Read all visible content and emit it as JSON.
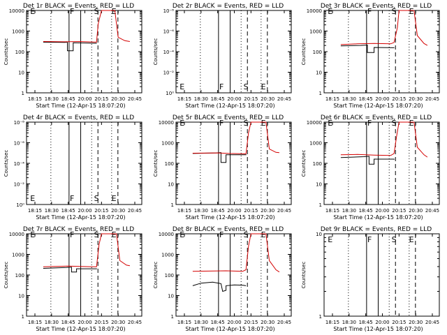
{
  "chart_data": [
    {
      "type": "line",
      "title": "Det 1r BLACK = Events, RED = LLD",
      "xlabel": "Start Time (12-Apr-15 18:07:20)",
      "ylabel": "Counts/sec",
      "x_ticks": [
        "18:15",
        "18:30",
        "18:45",
        "20:00",
        "20:15",
        "20:30",
        "20:45"
      ],
      "y_scale": "log",
      "y_ticks": [
        "1",
        "10",
        "100",
        "1000",
        "10000"
      ],
      "markers": [
        "E",
        "F",
        "S",
        "E"
      ],
      "series": [
        {
          "name": "BLACK",
          "color": "#000000",
          "points": [
            [
              0,
              290
            ],
            [
              1.3,
              280
            ],
            [
              1.45,
              290
            ],
            [
              1.45,
              110
            ],
            [
              1.8,
              110
            ],
            [
              1.8,
              270
            ],
            [
              3.2,
              255
            ],
            [
              3.2,
              250
            ]
          ]
        },
        {
          "name": "RED",
          "color": "#d40000",
          "points": [
            [
              0,
              310
            ],
            [
              1.3,
              300
            ],
            [
              2.2,
              310
            ],
            [
              3.2,
              290
            ],
            [
              3.3,
              2200
            ],
            [
              3.5,
              11000
            ],
            [
              4.3,
              11000
            ],
            [
              4.5,
              500
            ],
            [
              4.9,
              340
            ],
            [
              5.2,
              310
            ]
          ]
        }
      ]
    },
    {
      "type": "line",
      "title": "Det 2r BLACK = Events, RED = LLD",
      "xlabel": "Start Time (12-Apr-15 18:07:20)",
      "ylabel": "Counts/sec",
      "x_ticks": [
        "18:15",
        "18:30",
        "18:45",
        "20:00",
        "20:15",
        "20:30",
        "20:45"
      ],
      "y_scale": "log",
      "y_ticks": [
        "10⁰",
        "10⁻²",
        "10⁻⁴",
        "10⁻⁶",
        "10⁻⁸"
      ],
      "markers": [
        "E",
        "F",
        "S",
        "E"
      ],
      "series": []
    },
    {
      "type": "line",
      "title": "Det 3r BLACK = Events, RED = LLD",
      "xlabel": "Start Time (12-Apr-15 18:07:20)",
      "ylabel": "Counts/sec",
      "x_ticks": [
        "18:15",
        "18:30",
        "18:45",
        "20:00",
        "20:15",
        "20:30",
        "20:45"
      ],
      "y_scale": "log",
      "y_ticks": [
        "1",
        "10",
        "100",
        "1000",
        "10000"
      ],
      "markers": [
        "E",
        "F",
        "S",
        "E"
      ],
      "series": [
        {
          "name": "BLACK",
          "color": "#000000",
          "points": [
            [
              0,
              190
            ],
            [
              1.2,
              200
            ],
            [
              1.6,
              210
            ],
            [
              1.6,
              90
            ],
            [
              2.0,
              90
            ],
            [
              2.0,
              160
            ],
            [
              3.2,
              155
            ],
            [
              3.2,
              150
            ]
          ]
        },
        {
          "name": "RED",
          "color": "#d40000",
          "points": [
            [
              0,
              220
            ],
            [
              1.0,
              240
            ],
            [
              2.0,
              250
            ],
            [
              3.0,
              240
            ],
            [
              3.2,
              280
            ],
            [
              3.4,
              1500
            ],
            [
              3.5,
              11000
            ],
            [
              4.4,
              11000
            ],
            [
              4.6,
              600
            ],
            [
              5.0,
              250
            ],
            [
              5.2,
              200
            ]
          ]
        }
      ]
    },
    {
      "type": "line",
      "title": "Det 4r BLACK = Events, RED = LLD",
      "xlabel": "Start Time (12-Apr-15 18:07:20)",
      "ylabel": "Counts/sec",
      "x_ticks": [
        "18:15",
        "18:30",
        "18:45",
        "20:00",
        "20:15",
        "20:30",
        "20:45"
      ],
      "y_scale": "log",
      "y_ticks": [
        "10⁰",
        "10⁻²",
        "10⁻⁴",
        "10⁻⁶",
        "10⁻⁸"
      ],
      "markers": [
        "E",
        "F",
        "S",
        "E"
      ],
      "series": []
    },
    {
      "type": "line",
      "title": "Det 5r BLACK = Events, RED = LLD",
      "xlabel": "Start Time (12-Apr-15 18:07:20)",
      "ylabel": "Counts/sec",
      "x_ticks": [
        "18:15",
        "18:30",
        "18:45",
        "20:00",
        "20:15",
        "20:30",
        "20:45"
      ],
      "y_scale": "log",
      "y_ticks": [
        "1",
        "10",
        "100",
        "1000",
        "10000"
      ],
      "markers": [
        "E",
        "F",
        "S",
        "E"
      ],
      "series": [
        {
          "name": "BLACK",
          "color": "#000000",
          "points": [
            [
              0,
              300
            ],
            [
              1.4,
              320
            ],
            [
              1.7,
              330
            ],
            [
              1.7,
              110
            ],
            [
              2.0,
              110
            ],
            [
              2.0,
              260
            ],
            [
              3.2,
              260
            ],
            [
              3.2,
              250
            ]
          ]
        },
        {
          "name": "RED",
          "color": "#d40000",
          "points": [
            [
              0,
              310
            ],
            [
              1.5,
              320
            ],
            [
              2.2,
              300
            ],
            [
              3.2,
              290
            ],
            [
              3.35,
              3000
            ],
            [
              3.5,
              11000
            ],
            [
              4.4,
              11000
            ],
            [
              4.6,
              500
            ],
            [
              5.0,
              340
            ],
            [
              5.2,
              330
            ]
          ]
        }
      ]
    },
    {
      "type": "line",
      "title": "Det 6r BLACK = Events, RED = LLD",
      "xlabel": "Start Time (12-Apr-15 18:07:20)",
      "ylabel": "Counts/sec",
      "x_ticks": [
        "18:15",
        "18:30",
        "18:45",
        "20:00",
        "20:15",
        "20:30",
        "20:45"
      ],
      "y_scale": "log",
      "y_ticks": [
        "1",
        "10",
        "100",
        "1000",
        "10000"
      ],
      "markers": [
        "E",
        "F",
        "S",
        "E"
      ],
      "series": [
        {
          "name": "BLACK",
          "color": "#000000",
          "points": [
            [
              0,
              190
            ],
            [
              1.4,
              210
            ],
            [
              1.7,
              220
            ],
            [
              1.7,
              90
            ],
            [
              2.0,
              90
            ],
            [
              2.0,
              160
            ],
            [
              3.2,
              160
            ],
            [
              3.2,
              150
            ]
          ]
        },
        {
          "name": "RED",
          "color": "#d40000",
          "points": [
            [
              0,
              260
            ],
            [
              1.0,
              270
            ],
            [
              2.0,
              250
            ],
            [
              3.0,
              240
            ],
            [
              3.2,
              300
            ],
            [
              3.35,
              2000
            ],
            [
              3.5,
              11000
            ],
            [
              4.4,
              11000
            ],
            [
              4.6,
              600
            ],
            [
              5.0,
              260
            ],
            [
              5.2,
              200
            ]
          ]
        }
      ]
    },
    {
      "type": "line",
      "title": "Det 7r BLACK = Events, RED = LLD",
      "xlabel": "Start Time (12-Apr-15 18:07:20)",
      "ylabel": "Counts/sec",
      "x_ticks": [
        "18:15",
        "18:30",
        "18:45",
        "20:00",
        "20:15",
        "20:30",
        "20:45"
      ],
      "y_scale": "log",
      "y_ticks": [
        "1",
        "10",
        "100",
        "1000",
        "10000"
      ],
      "markers": [
        "E",
        "F",
        "S",
        "E"
      ],
      "series": [
        {
          "name": "BLACK",
          "color": "#000000",
          "points": [
            [
              0,
              210
            ],
            [
              1.4,
              230
            ],
            [
              1.7,
              240
            ],
            [
              1.7,
              140
            ],
            [
              2.0,
              140
            ],
            [
              2.0,
              200
            ],
            [
              3.2,
              200
            ],
            [
              3.2,
              190
            ]
          ]
        },
        {
          "name": "RED",
          "color": "#d40000",
          "points": [
            [
              0,
              250
            ],
            [
              1.5,
              270
            ],
            [
              2.2,
              260
            ],
            [
              3.2,
              250
            ],
            [
              3.35,
              3000
            ],
            [
              3.5,
              11000
            ],
            [
              4.4,
              11000
            ],
            [
              4.6,
              500
            ],
            [
              5.0,
              300
            ],
            [
              5.2,
              280
            ]
          ]
        }
      ]
    },
    {
      "type": "line",
      "title": "Det 8r BLACK = Events, RED = LLD",
      "xlabel": "Start Time (12-Apr-15 18:07:20)",
      "ylabel": "Counts/sec",
      "x_ticks": [
        "18:15",
        "18:30",
        "18:45",
        "20:00",
        "20:15",
        "20:30",
        "20:45"
      ],
      "y_scale": "log",
      "y_ticks": [
        "1",
        "10",
        "100",
        "1000",
        "10000"
      ],
      "markers": [
        "E",
        "F",
        "S",
        "E"
      ],
      "series": [
        {
          "name": "BLACK",
          "color": "#000000",
          "points": [
            [
              0,
              30
            ],
            [
              0.5,
              40
            ],
            [
              1.2,
              45
            ],
            [
              1.7,
              38
            ],
            [
              1.8,
              16
            ],
            [
              2.0,
              18
            ],
            [
              2.0,
              30
            ],
            [
              2.5,
              33
            ],
            [
              3.0,
              32
            ],
            [
              3.2,
              30
            ]
          ]
        },
        {
          "name": "RED",
          "color": "#d40000",
          "points": [
            [
              0,
              150
            ],
            [
              1.0,
              155
            ],
            [
              2.0,
              160
            ],
            [
              3.0,
              150
            ],
            [
              3.2,
              180
            ],
            [
              3.35,
              2500
            ],
            [
              3.5,
              11000
            ],
            [
              4.4,
              11000
            ],
            [
              4.6,
              500
            ],
            [
              5.0,
              180
            ],
            [
              5.2,
              140
            ]
          ]
        }
      ]
    },
    {
      "type": "line",
      "title": "Det 9r BLACK = Events, RED = LLD",
      "xlabel": "Start Time (12-Apr-15 18:07:20)",
      "ylabel": "Counts/sec",
      "x_ticks": [
        "18:15",
        "18:30",
        "18:45",
        "20:00",
        "20:15",
        "20:30",
        "20:45"
      ],
      "y_scale": "log",
      "y_ticks": [
        "1",
        "10"
      ],
      "markers": [
        "E",
        "F",
        "S",
        "E"
      ],
      "series": []
    }
  ]
}
